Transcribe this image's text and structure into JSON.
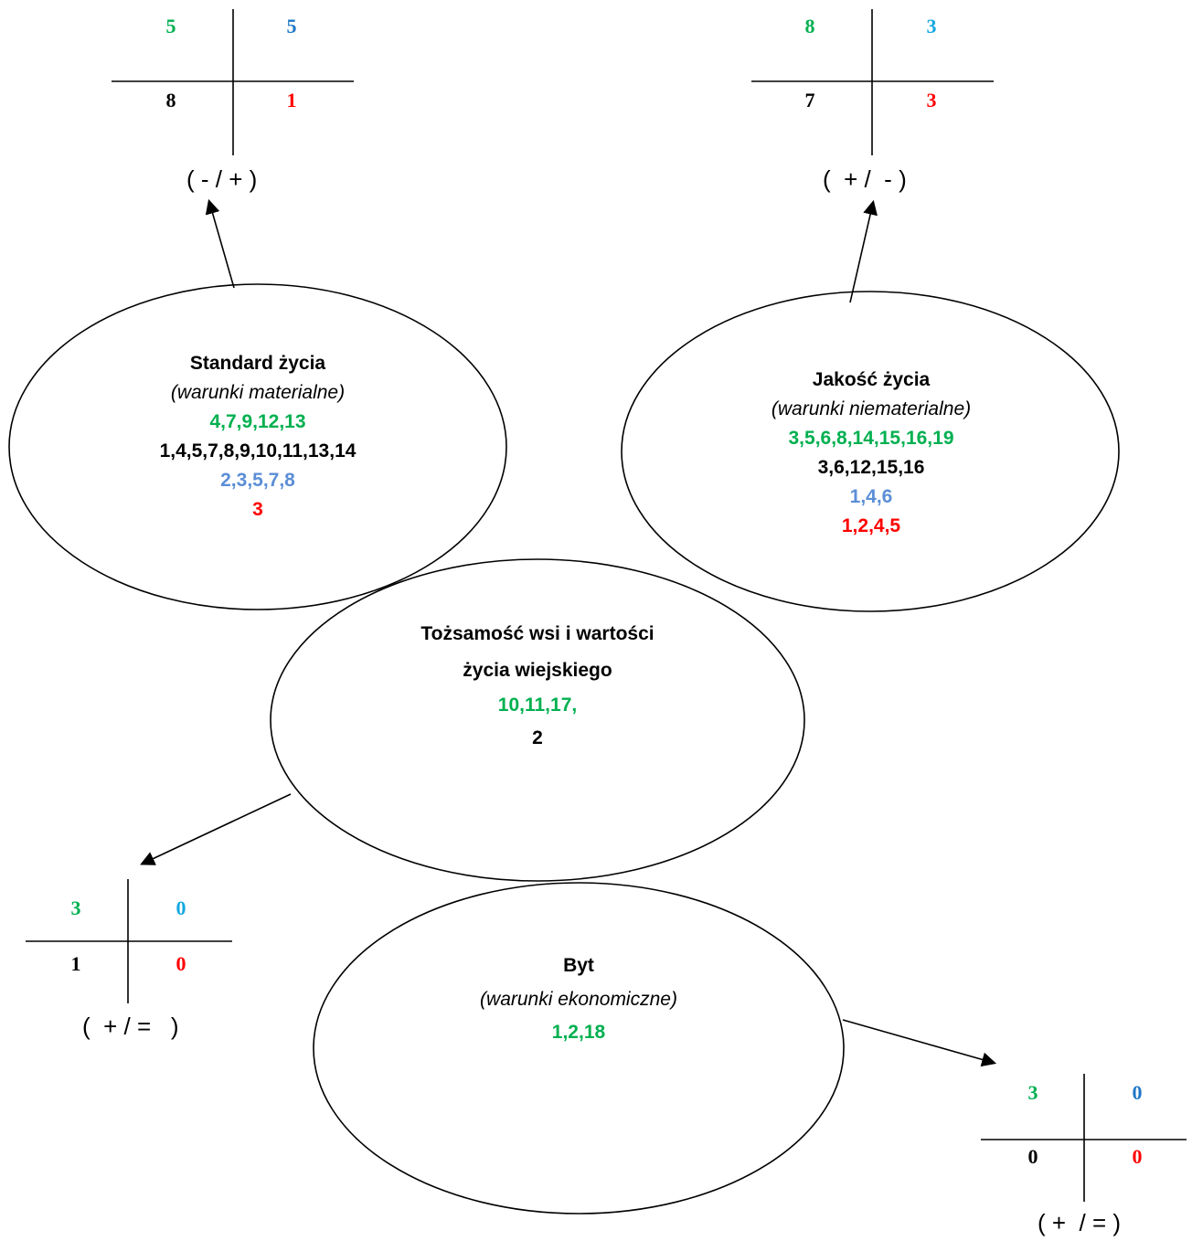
{
  "colors": {
    "positive": "#00b050",
    "neutral": "#000000",
    "mixed_blue": "#5b8ed6",
    "negative": "#ff0000",
    "cross_top_right_a": "#1f77c8",
    "cross_top_right_b": "#16a8e0"
  },
  "ellipses": {
    "standard": {
      "title": "Standard życia",
      "subtitle": "(warunki  materialne)",
      "green": "4,7,9,12,13",
      "black": "1,4,5,7,8,9,10,11,13,14",
      "blue": "2,3,5,7,8",
      "red": "3"
    },
    "quality": {
      "title": "Jakość życia",
      "subtitle": "(warunki niematerialne)",
      "green": "3,5,6,8,14,15,16,19",
      "black": "3,6,12,15,16",
      "blue": "1,4,6",
      "red": "1,2,4,5"
    },
    "identity": {
      "title_line1": "Tożsamość wsi i wartości",
      "title_line2": "życia wiejskiego",
      "green": "10,11,17,",
      "black": "2"
    },
    "existence": {
      "title": "Byt",
      "subtitle": "(warunki ekonomiczne)",
      "green": "1,2,18"
    }
  },
  "crosses": {
    "top_left": {
      "tl": "5",
      "tr": "5",
      "bl": "8",
      "br": "1",
      "sign": "( - / + )"
    },
    "top_right": {
      "tl": "8",
      "tr": "3",
      "bl": "7",
      "br": "3",
      "sign": "(  + /  - )"
    },
    "mid_left": {
      "tl": "3",
      "tr": "0",
      "bl": "1",
      "br": "0",
      "sign": "(  + / =   )"
    },
    "bottom_right": {
      "tl": "3",
      "tr": "0",
      "bl": "0",
      "br": "0",
      "sign": "( +  / = )"
    }
  }
}
